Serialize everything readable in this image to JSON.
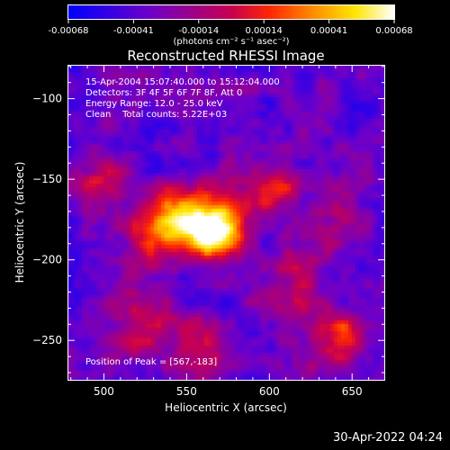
{
  "colorbar": {
    "ticks": [
      "-0.00068",
      "-0.00041",
      "-0.00014",
      "0.00014",
      "0.00041",
      "0.00068"
    ],
    "units": "(photons cm⁻² s⁻¹ asec⁻²)"
  },
  "chart_data": {
    "type": "heatmap",
    "title": "Reconstructed RHESSI Image",
    "xlabel": "Heliocentric X (arcsec)",
    "ylabel": "Heliocentric Y (arcsec)",
    "xlim": [
      478,
      670
    ],
    "ylim": [
      -275,
      -79
    ],
    "x_ticks": [
      500,
      550,
      600,
      650
    ],
    "y_ticks": [
      -100,
      -150,
      -200,
      -250
    ],
    "value_range": [
      -0.00068,
      0.00068
    ],
    "peak": {
      "x": 567,
      "y": -183
    },
    "sources": [
      {
        "x": 567,
        "y": -183,
        "amp": 1.0,
        "sigma": 13
      },
      {
        "x": 550,
        "y": -172,
        "amp": 0.55,
        "sigma": 14
      },
      {
        "x": 530,
        "y": -185,
        "amp": 0.45,
        "sigma": 12
      },
      {
        "x": 600,
        "y": -155,
        "amp": 0.45,
        "sigma": 12
      },
      {
        "x": 610,
        "y": -225,
        "amp": 0.35,
        "sigma": 12
      },
      {
        "x": 640,
        "y": -248,
        "amp": 0.55,
        "sigma": 12
      },
      {
        "x": 520,
        "y": -240,
        "amp": 0.4,
        "sigma": 14
      },
      {
        "x": 560,
        "y": -255,
        "amp": 0.35,
        "sigma": 12
      },
      {
        "x": 500,
        "y": -150,
        "amp": 0.35,
        "sigma": 12
      },
      {
        "x": 640,
        "y": -175,
        "amp": 0.3,
        "sigma": 12
      },
      {
        "x": 620,
        "y": -200,
        "amp": 0.25,
        "sigma": 10
      }
    ]
  },
  "info": {
    "line1": "15-Apr-2004 15:07:40.000 to 15:12:04.000",
    "line2": "Detectors: 3F 4F 5F 6F 7F 8F, Att 0",
    "line3": "Energy Range: 12.0 - 25.0 keV",
    "line4": "Clean    Total counts: 5.22E+03",
    "peak_label": "Position of Peak = [567,-183]"
  },
  "timestamp": "30-Apr-2022 04:24"
}
